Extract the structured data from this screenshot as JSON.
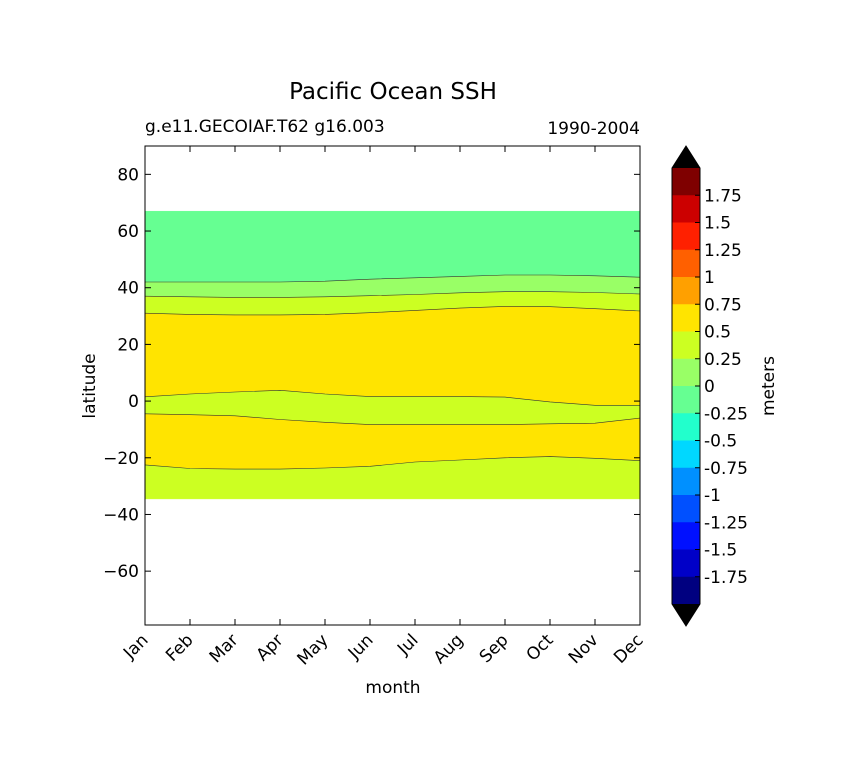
{
  "chart_data": {
    "type": "heatmap",
    "title": "Pacific Ocean SSH",
    "subtitle_left": "g.e11.GECOIAF.T62 g16.003",
    "subtitle_right": "1990-2004",
    "xlabel": "month",
    "ylabel": "latitude",
    "x_ticks": [
      "Jan",
      "Feb",
      "Mar",
      "Apr",
      "May",
      "Jun",
      "Jul",
      "Aug",
      "Sep",
      "Oct",
      "Nov",
      "Dec"
    ],
    "y_ticks": [
      80,
      60,
      40,
      20,
      0,
      -20,
      -40,
      -60
    ],
    "ylim": [
      -79,
      90
    ],
    "data_lat_range": [
      -34.5,
      67
    ],
    "x": [
      0,
      1,
      2,
      3,
      4,
      5,
      6,
      7,
      8,
      9,
      10,
      11
    ],
    "bands": [
      {
        "value_range": [
          -0.25,
          0
        ],
        "color": "#66ff92",
        "top": [
          67,
          67,
          67,
          67,
          67,
          67,
          67,
          67,
          67,
          67,
          67,
          67
        ],
        "bottom": [
          42,
          42,
          42,
          42,
          42.3,
          43,
          43.5,
          44,
          44.5,
          44.5,
          44.2,
          43.7
        ]
      },
      {
        "value_range": [
          0,
          0.25
        ],
        "color": "#99ff66",
        "top": [
          42,
          42,
          42,
          42,
          42.3,
          43,
          43.5,
          44,
          44.5,
          44.5,
          44.2,
          43.7
        ],
        "bottom": [
          37,
          36.8,
          36.6,
          36.6,
          36.8,
          37.2,
          37.6,
          38.2,
          38.6,
          38.6,
          38.3,
          37.8
        ]
      },
      {
        "value_range": [
          0.25,
          0.5
        ],
        "color": "#ccff22",
        "top": [
          37,
          36.8,
          36.6,
          36.6,
          36.8,
          37.2,
          37.6,
          38.2,
          38.6,
          38.6,
          38.3,
          37.8
        ],
        "bottom": [
          31,
          30.6,
          30.4,
          30.4,
          30.6,
          31.2,
          32,
          32.8,
          33.4,
          33.3,
          32.6,
          31.8
        ]
      },
      {
        "value_range": [
          0.5,
          0.75
        ],
        "color": "#ffe400",
        "top": [
          31,
          30.6,
          30.4,
          30.4,
          30.6,
          31.2,
          32,
          32.8,
          33.4,
          33.3,
          32.6,
          31.8
        ],
        "bottom": [
          1.5,
          2.5,
          3.2,
          3.8,
          2.5,
          1.6,
          1.6,
          1.6,
          1.4,
          -0.3,
          -1.5,
          -1.5
        ]
      },
      {
        "value_range": [
          0.25,
          0.5
        ],
        "color": "#ccff22",
        "top": [
          1.5,
          2.5,
          3.2,
          3.8,
          2.5,
          1.6,
          1.6,
          1.6,
          1.4,
          -0.3,
          -1.5,
          -1.5
        ],
        "bottom": [
          -4.5,
          -4.8,
          -5.2,
          -6.5,
          -7.5,
          -8.3,
          -8.3,
          -8.3,
          -8.3,
          -8.0,
          -7.8,
          -6.0
        ]
      },
      {
        "value_range": [
          0.5,
          0.75
        ],
        "color": "#ffe400",
        "top": [
          -4.5,
          -4.8,
          -5.2,
          -6.5,
          -7.5,
          -8.3,
          -8.3,
          -8.3,
          -8.3,
          -8.0,
          -7.8,
          -6.0
        ],
        "bottom": [
          -22.5,
          -23.8,
          -24,
          -24,
          -23.6,
          -23,
          -21.5,
          -20.8,
          -20,
          -19.6,
          -20.2,
          -21
        ]
      },
      {
        "value_range": [
          0.25,
          0.5
        ],
        "color": "#ccff22",
        "top": [
          -22.5,
          -23.8,
          -24,
          -24,
          -23.6,
          -23,
          -21.5,
          -20.8,
          -20,
          -19.6,
          -20.2,
          -21
        ],
        "bottom": [
          -34.5,
          -34.5,
          -34.5,
          -34.5,
          -34.5,
          -34.5,
          -34.5,
          -34.5,
          -34.5,
          -34.5,
          -34.5,
          -34.5
        ]
      }
    ],
    "colorbar": {
      "label": "meters",
      "extend": "both",
      "under_color": "#000000",
      "over_color": "#000000",
      "tick_labels": [
        "1.75",
        "1.5",
        "1.25",
        "1",
        "0.75",
        "0.5",
        "0.25",
        "0",
        "-0.25",
        "-0.5",
        "-0.75",
        "-1",
        "-1.25",
        "-1.5",
        "-1.75"
      ],
      "segments_top_to_bottom": [
        "#7f0000",
        "#cc0000",
        "#ff2000",
        "#ff6000",
        "#ffa000",
        "#ffe400",
        "#ccff22",
        "#99ff66",
        "#66ff92",
        "#22ffcc",
        "#00d8ff",
        "#0090ff",
        "#0050ff",
        "#0010ff",
        "#0000c8",
        "#000080"
      ]
    }
  }
}
